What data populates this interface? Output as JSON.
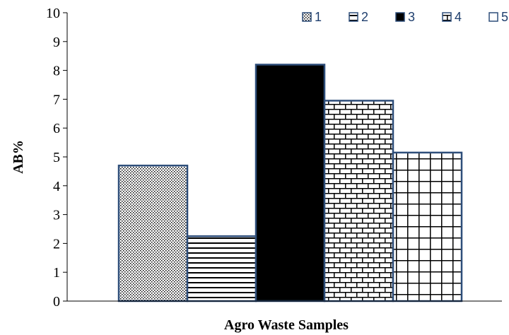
{
  "chart_data": {
    "type": "bar",
    "categories": [
      "1",
      "2",
      "3",
      "4",
      "5"
    ],
    "values": [
      4.7,
      2.25,
      8.2,
      6.95,
      5.15
    ],
    "xlabel": "Agro Waste Samples",
    "ylabel": "AB%",
    "ylim": [
      0,
      10
    ],
    "yticks": [
      0,
      1,
      2,
      3,
      4,
      5,
      6,
      7,
      8,
      9,
      10
    ],
    "grid": false,
    "legend": {
      "placement": "top-right",
      "entries": [
        "1",
        "2",
        "3",
        "4",
        "5"
      ]
    },
    "series_patterns": [
      "dots",
      "horizontal-lines",
      "solid",
      "bricks",
      "grid"
    ],
    "colors": {
      "bar_border": "#2e4e7a",
      "fill": "#000000",
      "legend_text": "#1f3f6e"
    }
  }
}
